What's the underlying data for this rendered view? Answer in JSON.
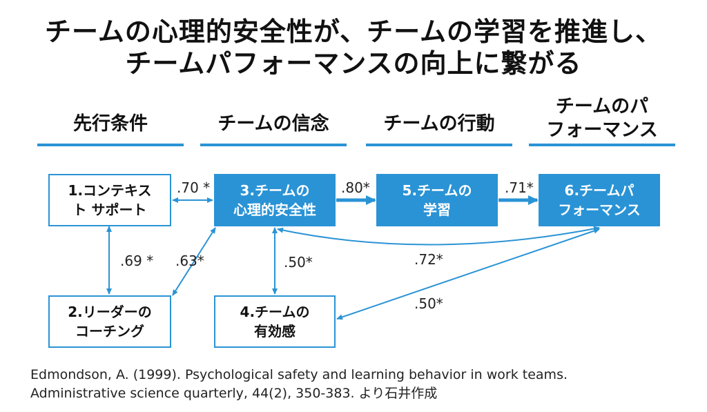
{
  "title": {
    "line1": "チームの心理的安全性が、チームの学習を推進し、",
    "line2": "チームパフォーマンスの向上に繋がる"
  },
  "columns": [
    {
      "label_line1": "",
      "label_line2": "先行条件"
    },
    {
      "label_line1": "",
      "label_line2": "チームの信念"
    },
    {
      "label_line1": "",
      "label_line2": "チームの行動"
    },
    {
      "label_line1": "チームのパ",
      "label_line2": "フォーマンス"
    }
  ],
  "boxes": {
    "context_support": {
      "line1": "1.コンテキス",
      "line2": "ト サポート"
    },
    "leader_coaching": {
      "line1": "2.リーダーの",
      "line2": "コーチング"
    },
    "psych_safety": {
      "line1": "3.チームの",
      "line2": "心理的安全性"
    },
    "efficacy": {
      "line1": "4.チームの",
      "line2": "有効感"
    },
    "learning": {
      "line1": "5.チームの",
      "line2": "学習"
    },
    "performance": {
      "line1": "6.チームパ",
      "line2": "フォーマンス"
    }
  },
  "coefficients": {
    "c1_3": ".70 *",
    "c3_5": ".80*",
    "c5_6": ".71*",
    "c1_2": ".69 *",
    "c2_3": ".63*",
    "c3_4": ".50*",
    "c3_6": ".72*",
    "c4_6": ".50*"
  },
  "citation": {
    "line1": "Edmondson, A. (1999). Psychological safety and learning behavior in work teams.",
    "line2": "Administrative science quarterly, 44(2), 350-383. より石井作成"
  },
  "colors": {
    "accent": "#2a93d5"
  }
}
